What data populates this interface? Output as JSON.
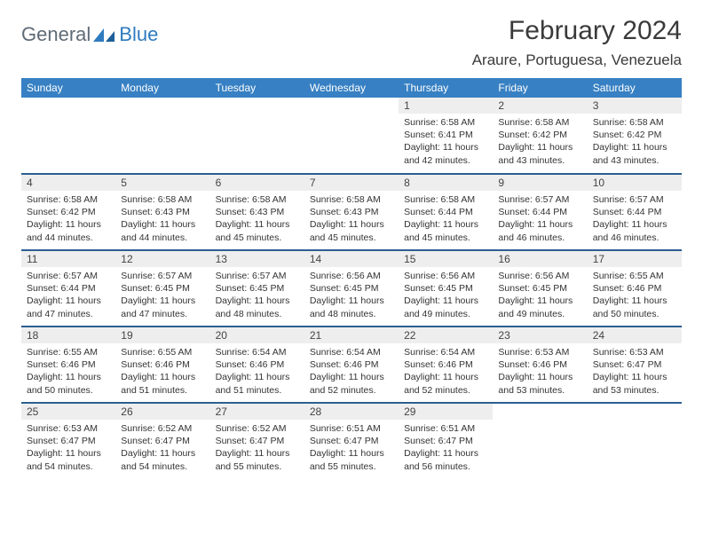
{
  "brand": {
    "part1": "General",
    "part2": "Blue"
  },
  "title": "February 2024",
  "location": "Araure, Portuguesa, Venezuela",
  "colors": {
    "header_bg": "#3780c3",
    "row_divider": "#2b5f91",
    "daynum_bg": "#eeeeee",
    "text": "#333333",
    "brand_gray": "#5f6b76",
    "brand_blue": "#2f7bbf",
    "page_bg": "#ffffff"
  },
  "dayNames": [
    "Sunday",
    "Monday",
    "Tuesday",
    "Wednesday",
    "Thursday",
    "Friday",
    "Saturday"
  ],
  "weeks": [
    [
      {
        "n": "",
        "sr": "",
        "ss": "",
        "dl": ""
      },
      {
        "n": "",
        "sr": "",
        "ss": "",
        "dl": ""
      },
      {
        "n": "",
        "sr": "",
        "ss": "",
        "dl": ""
      },
      {
        "n": "",
        "sr": "",
        "ss": "",
        "dl": ""
      },
      {
        "n": "1",
        "sr": "Sunrise: 6:58 AM",
        "ss": "Sunset: 6:41 PM",
        "dl": "Daylight: 11 hours and 42 minutes."
      },
      {
        "n": "2",
        "sr": "Sunrise: 6:58 AM",
        "ss": "Sunset: 6:42 PM",
        "dl": "Daylight: 11 hours and 43 minutes."
      },
      {
        "n": "3",
        "sr": "Sunrise: 6:58 AM",
        "ss": "Sunset: 6:42 PM",
        "dl": "Daylight: 11 hours and 43 minutes."
      }
    ],
    [
      {
        "n": "4",
        "sr": "Sunrise: 6:58 AM",
        "ss": "Sunset: 6:42 PM",
        "dl": "Daylight: 11 hours and 44 minutes."
      },
      {
        "n": "5",
        "sr": "Sunrise: 6:58 AM",
        "ss": "Sunset: 6:43 PM",
        "dl": "Daylight: 11 hours and 44 minutes."
      },
      {
        "n": "6",
        "sr": "Sunrise: 6:58 AM",
        "ss": "Sunset: 6:43 PM",
        "dl": "Daylight: 11 hours and 45 minutes."
      },
      {
        "n": "7",
        "sr": "Sunrise: 6:58 AM",
        "ss": "Sunset: 6:43 PM",
        "dl": "Daylight: 11 hours and 45 minutes."
      },
      {
        "n": "8",
        "sr": "Sunrise: 6:58 AM",
        "ss": "Sunset: 6:44 PM",
        "dl": "Daylight: 11 hours and 45 minutes."
      },
      {
        "n": "9",
        "sr": "Sunrise: 6:57 AM",
        "ss": "Sunset: 6:44 PM",
        "dl": "Daylight: 11 hours and 46 minutes."
      },
      {
        "n": "10",
        "sr": "Sunrise: 6:57 AM",
        "ss": "Sunset: 6:44 PM",
        "dl": "Daylight: 11 hours and 46 minutes."
      }
    ],
    [
      {
        "n": "11",
        "sr": "Sunrise: 6:57 AM",
        "ss": "Sunset: 6:44 PM",
        "dl": "Daylight: 11 hours and 47 minutes."
      },
      {
        "n": "12",
        "sr": "Sunrise: 6:57 AM",
        "ss": "Sunset: 6:45 PM",
        "dl": "Daylight: 11 hours and 47 minutes."
      },
      {
        "n": "13",
        "sr": "Sunrise: 6:57 AM",
        "ss": "Sunset: 6:45 PM",
        "dl": "Daylight: 11 hours and 48 minutes."
      },
      {
        "n": "14",
        "sr": "Sunrise: 6:56 AM",
        "ss": "Sunset: 6:45 PM",
        "dl": "Daylight: 11 hours and 48 minutes."
      },
      {
        "n": "15",
        "sr": "Sunrise: 6:56 AM",
        "ss": "Sunset: 6:45 PM",
        "dl": "Daylight: 11 hours and 49 minutes."
      },
      {
        "n": "16",
        "sr": "Sunrise: 6:56 AM",
        "ss": "Sunset: 6:45 PM",
        "dl": "Daylight: 11 hours and 49 minutes."
      },
      {
        "n": "17",
        "sr": "Sunrise: 6:55 AM",
        "ss": "Sunset: 6:46 PM",
        "dl": "Daylight: 11 hours and 50 minutes."
      }
    ],
    [
      {
        "n": "18",
        "sr": "Sunrise: 6:55 AM",
        "ss": "Sunset: 6:46 PM",
        "dl": "Daylight: 11 hours and 50 minutes."
      },
      {
        "n": "19",
        "sr": "Sunrise: 6:55 AM",
        "ss": "Sunset: 6:46 PM",
        "dl": "Daylight: 11 hours and 51 minutes."
      },
      {
        "n": "20",
        "sr": "Sunrise: 6:54 AM",
        "ss": "Sunset: 6:46 PM",
        "dl": "Daylight: 11 hours and 51 minutes."
      },
      {
        "n": "21",
        "sr": "Sunrise: 6:54 AM",
        "ss": "Sunset: 6:46 PM",
        "dl": "Daylight: 11 hours and 52 minutes."
      },
      {
        "n": "22",
        "sr": "Sunrise: 6:54 AM",
        "ss": "Sunset: 6:46 PM",
        "dl": "Daylight: 11 hours and 52 minutes."
      },
      {
        "n": "23",
        "sr": "Sunrise: 6:53 AM",
        "ss": "Sunset: 6:46 PM",
        "dl": "Daylight: 11 hours and 53 minutes."
      },
      {
        "n": "24",
        "sr": "Sunrise: 6:53 AM",
        "ss": "Sunset: 6:47 PM",
        "dl": "Daylight: 11 hours and 53 minutes."
      }
    ],
    [
      {
        "n": "25",
        "sr": "Sunrise: 6:53 AM",
        "ss": "Sunset: 6:47 PM",
        "dl": "Daylight: 11 hours and 54 minutes."
      },
      {
        "n": "26",
        "sr": "Sunrise: 6:52 AM",
        "ss": "Sunset: 6:47 PM",
        "dl": "Daylight: 11 hours and 54 minutes."
      },
      {
        "n": "27",
        "sr": "Sunrise: 6:52 AM",
        "ss": "Sunset: 6:47 PM",
        "dl": "Daylight: 11 hours and 55 minutes."
      },
      {
        "n": "28",
        "sr": "Sunrise: 6:51 AM",
        "ss": "Sunset: 6:47 PM",
        "dl": "Daylight: 11 hours and 55 minutes."
      },
      {
        "n": "29",
        "sr": "Sunrise: 6:51 AM",
        "ss": "Sunset: 6:47 PM",
        "dl": "Daylight: 11 hours and 56 minutes."
      },
      {
        "n": "",
        "sr": "",
        "ss": "",
        "dl": ""
      },
      {
        "n": "",
        "sr": "",
        "ss": "",
        "dl": ""
      }
    ]
  ]
}
